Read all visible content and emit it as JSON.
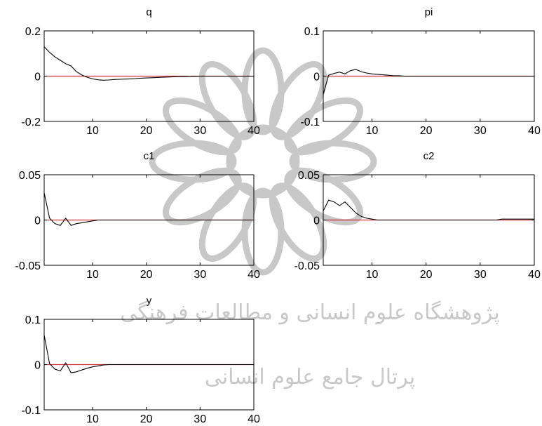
{
  "watermark": {
    "line1": "پژوهشگاه علوم انسانی و مطالعات فرهنگی",
    "line2": "پرتال جامع علوم انسانی",
    "color": "#c8c8c8"
  },
  "colors": {
    "zero_line": "#cc3333",
    "series": "#000000",
    "axes": "#000000"
  },
  "chart_data": [
    {
      "type": "line",
      "title": "q",
      "xlim": [
        1,
        40
      ],
      "ylim": [
        -0.2,
        0.2
      ],
      "xticks": [
        10,
        20,
        30,
        40
      ],
      "yticks": [
        -0.2,
        0,
        0.2
      ],
      "xticklabels": [
        "10",
        "20",
        "30",
        "40"
      ],
      "yticklabels": [
        "-0.2",
        "0",
        "0.2"
      ],
      "x": [
        1,
        2,
        3,
        4,
        5,
        6,
        7,
        8,
        9,
        10,
        11,
        12,
        13,
        14,
        15,
        16,
        17,
        18,
        19,
        20,
        21,
        22,
        23,
        24,
        25,
        26,
        27,
        28,
        29,
        30,
        31,
        32,
        33,
        34,
        35,
        36,
        37,
        38,
        39,
        40
      ],
      "series": [
        {
          "values": [
            0.13,
            0.105,
            0.085,
            0.07,
            0.055,
            0.045,
            0.02,
            0.005,
            -0.005,
            -0.012,
            -0.016,
            -0.018,
            -0.017,
            -0.015,
            -0.014,
            -0.013,
            -0.012,
            -0.011,
            -0.009,
            -0.008,
            -0.007,
            -0.006,
            -0.005,
            -0.004,
            -0.003,
            -0.002,
            -0.002,
            -0.001,
            -0.001,
            0,
            0,
            0,
            0,
            0,
            0,
            0,
            0,
            0,
            0,
            0
          ]
        }
      ]
    },
    {
      "type": "line",
      "title": "pi",
      "xlim": [
        1,
        40
      ],
      "ylim": [
        -0.1,
        0.1
      ],
      "xticks": [
        10,
        20,
        30,
        40
      ],
      "yticks": [
        -0.1,
        0,
        0.1
      ],
      "xticklabels": [
        "10",
        "20",
        "30",
        "40"
      ],
      "yticklabels": [
        "-0.1",
        "0",
        "0.1"
      ],
      "x": [
        1,
        2,
        3,
        4,
        5,
        6,
        7,
        8,
        9,
        10,
        11,
        12,
        13,
        14,
        15,
        16,
        17,
        18,
        19,
        20,
        21,
        22,
        23,
        24,
        25,
        26,
        27,
        28,
        29,
        30,
        31,
        32,
        33,
        34,
        35,
        36,
        37,
        38,
        39,
        40
      ],
      "series": [
        {
          "values": [
            -0.04,
            0.002,
            0.006,
            0.009,
            0.005,
            0.012,
            0.015,
            0.01,
            0.007,
            0.005,
            0.004,
            0.003,
            0.002,
            0.001,
            0.001,
            0,
            0,
            0,
            0,
            0,
            0,
            0,
            0,
            0,
            0,
            0,
            0,
            0,
            0,
            0,
            0,
            0,
            0,
            0,
            0,
            0,
            0,
            0,
            0,
            0
          ]
        }
      ]
    },
    {
      "type": "line",
      "title": "c1",
      "xlim": [
        1,
        40
      ],
      "ylim": [
        -0.05,
        0.05
      ],
      "xticks": [
        10,
        20,
        30,
        40
      ],
      "yticks": [
        -0.05,
        0,
        0.05
      ],
      "xticklabels": [
        "10",
        "20",
        "30",
        "40"
      ],
      "yticklabels": [
        "-0.05",
        "0",
        "0.05"
      ],
      "x": [
        1,
        2,
        3,
        4,
        5,
        6,
        7,
        8,
        9,
        10,
        11,
        12,
        13,
        14,
        15,
        16,
        17,
        18,
        19,
        20,
        21,
        22,
        23,
        24,
        25,
        26,
        27,
        28,
        29,
        30,
        31,
        32,
        33,
        34,
        35,
        36,
        37,
        38,
        39,
        40
      ],
      "series": [
        {
          "values": [
            0.03,
            0.002,
            -0.004,
            -0.006,
            0.002,
            -0.006,
            -0.004,
            -0.003,
            -0.002,
            -0.001,
            0,
            0,
            0,
            0,
            0,
            0,
            0,
            0,
            0,
            0,
            0,
            0,
            0,
            0,
            0,
            0,
            0,
            0,
            0,
            0,
            0,
            0,
            0,
            0,
            0,
            0,
            0,
            0,
            0,
            0
          ]
        }
      ]
    },
    {
      "type": "line",
      "title": "c2",
      "xlim": [
        1,
        40
      ],
      "ylim": [
        -0.05,
        0.05
      ],
      "xticks": [
        10,
        20,
        30,
        40
      ],
      "yticks": [
        -0.05,
        0,
        0.05
      ],
      "xticklabels": [
        "10",
        "20",
        "30",
        "40"
      ],
      "yticklabels": [
        "-0.05",
        "0",
        "0.05"
      ],
      "x": [
        1,
        2,
        3,
        4,
        5,
        6,
        7,
        8,
        9,
        10,
        11,
        12,
        13,
        14,
        15,
        16,
        17,
        18,
        19,
        20,
        21,
        22,
        23,
        24,
        25,
        26,
        27,
        28,
        29,
        30,
        31,
        32,
        33,
        34,
        35,
        36,
        37,
        38,
        39,
        40
      ],
      "series": [
        {
          "values": [
            0.01,
            0.022,
            0.02,
            0.016,
            0.02,
            0.014,
            0.008,
            0.004,
            0.002,
            0.001,
            0,
            0,
            0,
            0,
            0,
            0,
            0,
            0,
            0,
            0,
            0,
            0,
            0,
            0,
            0,
            0,
            0,
            0,
            0,
            0,
            0,
            0,
            0,
            0.001,
            0.001,
            0.001,
            0.001,
            0.001,
            0.001,
            0.001
          ]
        }
      ]
    },
    {
      "type": "line",
      "title": "y",
      "xlim": [
        1,
        40
      ],
      "ylim": [
        -0.1,
        0.1
      ],
      "xticks": [
        10,
        20,
        30,
        40
      ],
      "yticks": [
        -0.1,
        0,
        0.1
      ],
      "xticklabels": [
        "10",
        "20",
        "30",
        "40"
      ],
      "yticklabels": [
        "-0.1",
        "0",
        "0.1"
      ],
      "x": [
        1,
        2,
        3,
        4,
        5,
        6,
        7,
        8,
        9,
        10,
        11,
        12,
        13,
        14,
        15,
        16,
        17,
        18,
        19,
        20,
        21,
        22,
        23,
        24,
        25,
        26,
        27,
        28,
        29,
        30,
        31,
        32,
        33,
        34,
        35,
        36,
        37,
        38,
        39,
        40
      ],
      "series": [
        {
          "values": [
            0.065,
            0.002,
            -0.01,
            -0.014,
            0.004,
            -0.018,
            -0.016,
            -0.012,
            -0.008,
            -0.005,
            -0.003,
            -0.001,
            0,
            0,
            0,
            0,
            0,
            0,
            0,
            0,
            0,
            0,
            0,
            0,
            0,
            0,
            0,
            0,
            0,
            0,
            0,
            0,
            0,
            0,
            0,
            0,
            0,
            0,
            0,
            0
          ]
        }
      ]
    }
  ]
}
